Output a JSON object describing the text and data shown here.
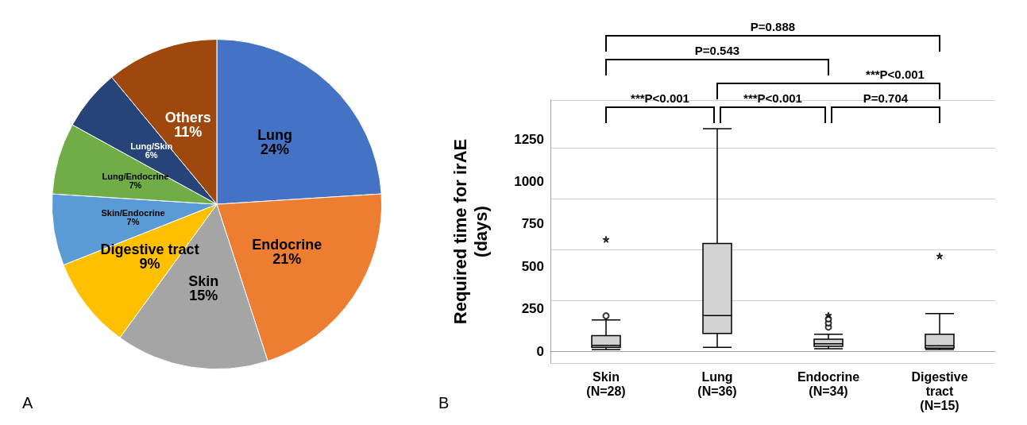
{
  "chart_data": [
    {
      "type": "pie",
      "categories": [
        "Lung",
        "Endocrine",
        "Skin",
        "Digestive tract",
        "Skin/Endocrine",
        "Lung/Endocrine",
        "Lung/Skin",
        "Others"
      ],
      "values": [
        24,
        21,
        15,
        9,
        7,
        7,
        6,
        11
      ],
      "colors": [
        "#4472c4",
        "#ed7d31",
        "#a5a5a5",
        "#ffc000",
        "#5b9bd5",
        "#70ad47",
        "#264478",
        "#9e480e"
      ],
      "value_labels": [
        "24%",
        "21%",
        "15%",
        "9%",
        "7%",
        "7%",
        "6%",
        "11%"
      ],
      "annotations": [
        "A"
      ]
    },
    {
      "type": "box",
      "categories": [
        "Skin\n(N=28)",
        "Lung\n(N=36)",
        "Endocrine\n(N=34)",
        "Digestive\ntract\n(N=15)"
      ],
      "ylabel": "Required time for irAE\n(days)",
      "ylim": [
        -70,
        1480
      ],
      "yticks": [
        0,
        250,
        500,
        750,
        1000,
        1250
      ],
      "grid": "y",
      "color": "#d3d3d3",
      "boxes": [
        {
          "low": 10,
          "q1": 22,
          "median": 34,
          "q3": 92,
          "high": 184,
          "outliers": [
            208
          ]
        },
        {
          "low": 22,
          "q1": 104,
          "median": 210,
          "q3": 635,
          "high": 1312
        },
        {
          "low": 14,
          "q1": 28,
          "median": 44,
          "q3": 70,
          "high": 100,
          "outliers": [
            142,
            166,
            190
          ]
        },
        {
          "low": 10,
          "q1": 18,
          "median": 32,
          "q3": 100,
          "high": 222
        }
      ],
      "series": [
        {
          "type": "scatter",
          "marker": "star",
          "color": "#000000",
          "x": [
            "Skin\n(N=28)",
            "Endocrine\n(N=34)",
            "Digestive\ntract\n(N=15)"
          ],
          "values": [
            659,
            212,
            561
          ]
        }
      ],
      "annotations": [
        "P=0.888",
        "P=0.543",
        "***P<0.001",
        "***P<0.001",
        "***P<0.001",
        "P=0.704",
        "B"
      ]
    }
  ]
}
